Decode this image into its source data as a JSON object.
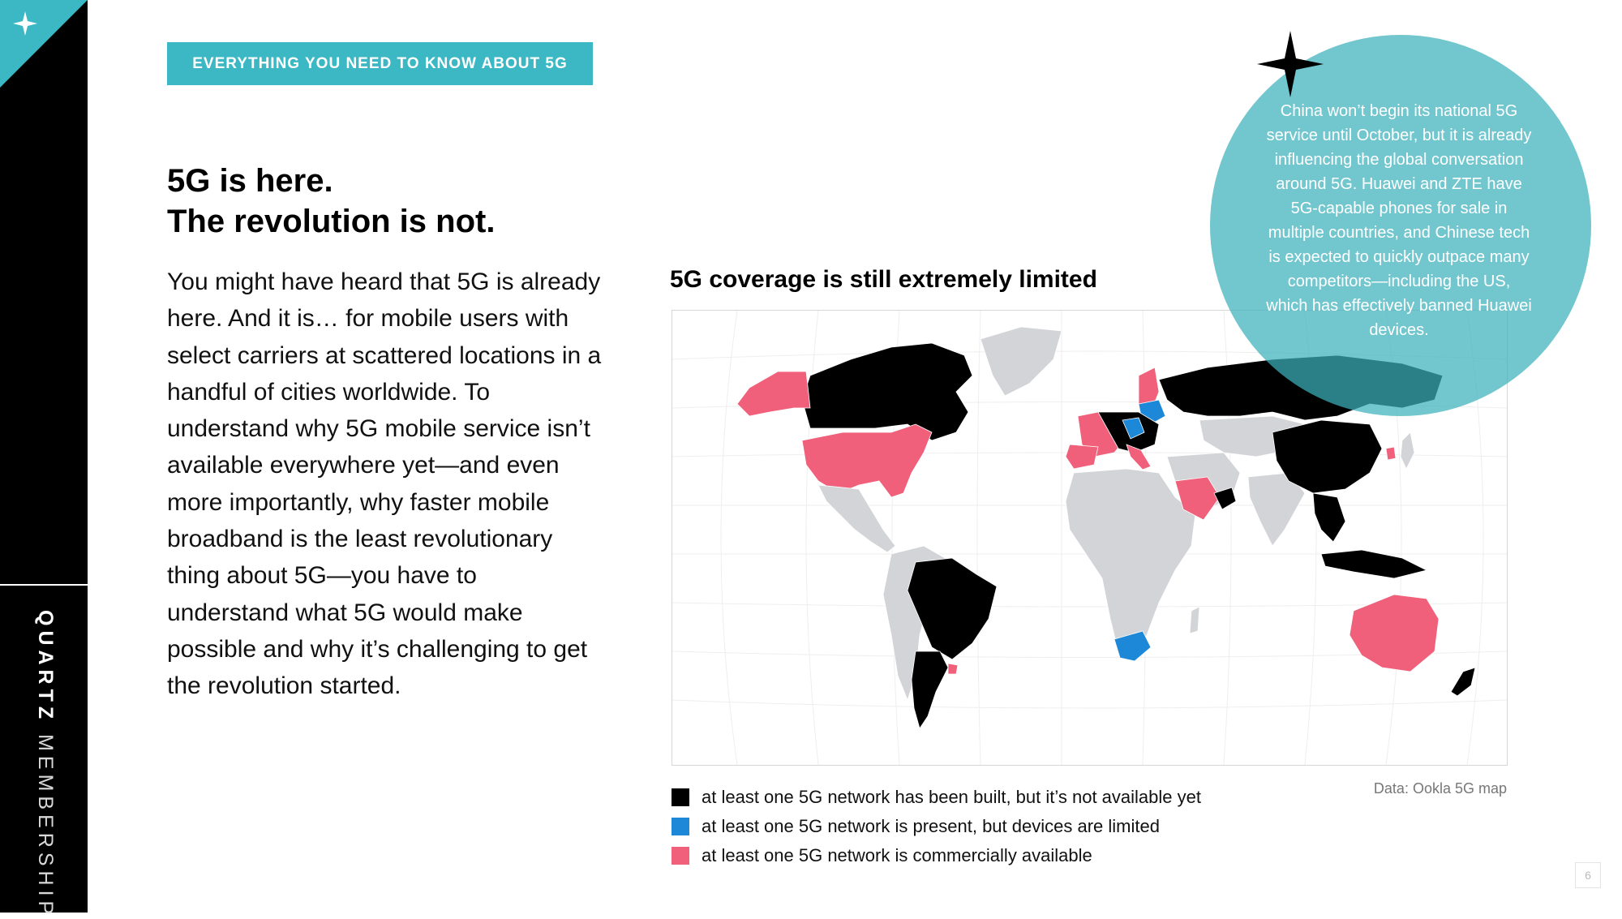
{
  "sidebar": {
    "brand_bold": "QUARTZ",
    "brand_light": "MEMBERSHIP"
  },
  "banner": {
    "label": "EVERYTHING YOU NEED TO KNOW ABOUT 5G"
  },
  "headline": {
    "line1": "5G is here.",
    "line2": "The revolution is not."
  },
  "body": {
    "paragraph": "You might have heard that 5G is already here. And it is… for mobile users with select carriers at scattered locations in a handful of cities worldwide. To understand why 5G mobile service isn’t available everywhere yet—and even more importantly, why faster mobile broadband is the least revolutionary thing about 5G—you have to understand what 5G would make possible and why it’s challenging to get the revolution started."
  },
  "map": {
    "title": "5G coverage is still extremely limited",
    "source": "Data: Ookla 5G map",
    "colors": {
      "built": "#000000",
      "limited": "#1e88d8",
      "available": "#f0607a",
      "none": "#d3d4d8",
      "accent": "#3bb8c3"
    },
    "legend": [
      {
        "key": "built",
        "label": "at least one 5G network has been built, but it’s not available yet"
      },
      {
        "key": "limited",
        "label": "at least one 5G network is present, but devices are limited"
      },
      {
        "key": "available",
        "label": "at least one 5G network is commercially available"
      }
    ]
  },
  "callout": {
    "text": "China won’t begin its national 5G service until October, but it is already influencing the global conversation around 5G. Huawei and ZTE have 5G-capable phones for sale in multiple countries, and Chinese tech is expected to quickly outpace many competitors—including the US, which has effectively banned Huawei devices."
  },
  "page": {
    "number": "6"
  }
}
